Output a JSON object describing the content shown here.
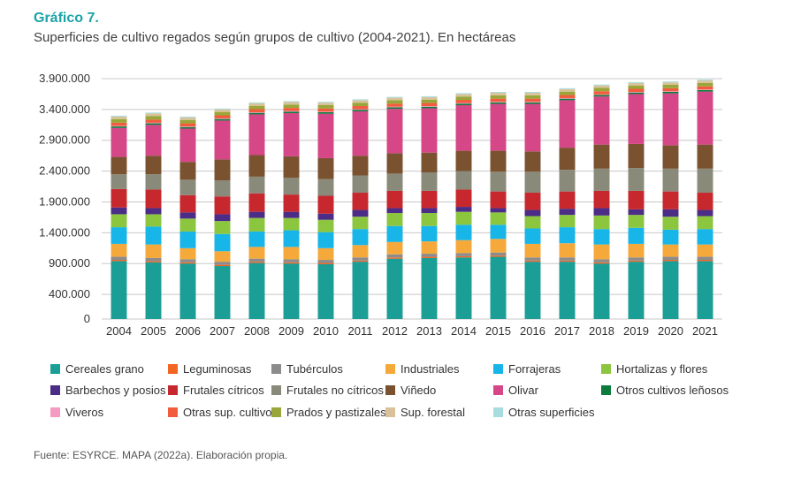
{
  "header": {
    "title": "Gráfico 7.",
    "subtitle": "Superficies de cultivo regados según grupos de cultivo (2004-2021). En hectáreas"
  },
  "source": "Fuente: ESYRCE. MAPA (2022a). Elaboración propia.",
  "chart_data": {
    "type": "bar",
    "stacked": true,
    "title": "Superficies de cultivo regados según grupos de cultivo (2004-2021). En hectáreas",
    "xlabel": "",
    "ylabel": "",
    "ylim": [
      0,
      3900000
    ],
    "yticks": [
      0,
      400000,
      900000,
      1400000,
      1900000,
      2400000,
      2900000,
      3400000,
      3900000
    ],
    "ytick_labels": [
      "0",
      "400.000",
      "900.000",
      "1.400.000",
      "1.900.000",
      "2.400.000",
      "2.900.000",
      "3.400.000",
      "3.900.000"
    ],
    "grid": true,
    "legend_position": "bottom",
    "categories": [
      "2004",
      "2005",
      "2006",
      "2007",
      "2008",
      "2009",
      "2010",
      "2011",
      "2012",
      "2013",
      "2014",
      "2015",
      "2016",
      "2017",
      "2018",
      "2019",
      "2020",
      "2021"
    ],
    "series": [
      {
        "name": "Cereales grano",
        "color": "#1a9e96",
        "values": [
          940000,
          920000,
          900000,
          860000,
          910000,
          900000,
          890000,
          930000,
          980000,
          990000,
          1000000,
          1010000,
          930000,
          930000,
          900000,
          930000,
          940000,
          940000
        ]
      },
      {
        "name": "Leguminosas",
        "color": "#f26522",
        "values": [
          20000,
          20000,
          20000,
          20000,
          20000,
          20000,
          20000,
          20000,
          20000,
          20000,
          20000,
          20000,
          20000,
          20000,
          20000,
          20000,
          20000,
          20000
        ]
      },
      {
        "name": "Tubérculos",
        "color": "#8c8c8c",
        "values": [
          50000,
          50000,
          50000,
          50000,
          50000,
          50000,
          50000,
          50000,
          50000,
          50000,
          50000,
          50000,
          50000,
          50000,
          50000,
          50000,
          50000,
          50000
        ]
      },
      {
        "name": "Industriales",
        "color": "#f6a93b",
        "values": [
          210000,
          220000,
          180000,
          170000,
          190000,
          200000,
          190000,
          200000,
          200000,
          200000,
          210000,
          220000,
          220000,
          230000,
          240000,
          220000,
          200000,
          200000
        ]
      },
      {
        "name": "Forrajeras",
        "color": "#17b5e8",
        "values": [
          270000,
          290000,
          270000,
          280000,
          250000,
          270000,
          260000,
          260000,
          260000,
          250000,
          250000,
          230000,
          250000,
          260000,
          250000,
          260000,
          240000,
          250000
        ]
      },
      {
        "name": "Hortalizas y flores",
        "color": "#8cc63f",
        "values": [
          210000,
          200000,
          210000,
          210000,
          220000,
          200000,
          200000,
          200000,
          210000,
          210000,
          210000,
          200000,
          200000,
          200000,
          220000,
          210000,
          210000,
          210000
        ]
      },
      {
        "name": "Barbechos y posios",
        "color": "#4b2c86",
        "values": [
          110000,
          100000,
          100000,
          110000,
          100000,
          100000,
          100000,
          110000,
          80000,
          80000,
          80000,
          70000,
          100000,
          100000,
          120000,
          90000,
          120000,
          100000
        ]
      },
      {
        "name": "Frutales cítricos",
        "color": "#c7282e",
        "values": [
          300000,
          300000,
          280000,
          290000,
          300000,
          280000,
          290000,
          280000,
          280000,
          280000,
          280000,
          270000,
          280000,
          280000,
          280000,
          300000,
          290000,
          280000
        ]
      },
      {
        "name": "Frutales no cítricos",
        "color": "#8a8a7a",
        "values": [
          240000,
          250000,
          250000,
          260000,
          270000,
          270000,
          270000,
          280000,
          280000,
          300000,
          300000,
          320000,
          340000,
          350000,
          360000,
          370000,
          370000,
          390000
        ]
      },
      {
        "name": "Viñedo",
        "color": "#7a5230",
        "values": [
          280000,
          300000,
          290000,
          340000,
          350000,
          350000,
          340000,
          320000,
          330000,
          320000,
          330000,
          340000,
          330000,
          360000,
          390000,
          390000,
          380000,
          390000
        ]
      },
      {
        "name": "Olivar",
        "color": "#d64788",
        "values": [
          470000,
          500000,
          540000,
          630000,
          660000,
          700000,
          720000,
          720000,
          720000,
          720000,
          740000,
          760000,
          770000,
          770000,
          780000,
          810000,
          840000,
          860000
        ]
      },
      {
        "name": "Otros cultivos leñosos",
        "color": "#0e7a3e",
        "values": [
          25000,
          25000,
          25000,
          25000,
          25000,
          25000,
          25000,
          25000,
          25000,
          25000,
          25000,
          25000,
          25000,
          25000,
          25000,
          25000,
          25000,
          25000
        ]
      },
      {
        "name": "Viveros",
        "color": "#f59ac0",
        "values": [
          10000,
          10000,
          10000,
          10000,
          10000,
          10000,
          10000,
          10000,
          10000,
          10000,
          10000,
          10000,
          10000,
          10000,
          10000,
          10000,
          10000,
          10000
        ]
      },
      {
        "name": "Otras sup. cultivo",
        "color": "#f25c3c",
        "values": [
          50000,
          50000,
          50000,
          50000,
          50000,
          50000,
          50000,
          50000,
          50000,
          50000,
          50000,
          50000,
          50000,
          50000,
          50000,
          50000,
          50000,
          50000
        ]
      },
      {
        "name": "Prados y pastizales",
        "color": "#9aa63a",
        "values": [
          60000,
          60000,
          55000,
          55000,
          55000,
          55000,
          55000,
          55000,
          55000,
          55000,
          55000,
          55000,
          55000,
          55000,
          55000,
          55000,
          55000,
          55000
        ]
      },
      {
        "name": "Sup. forestal",
        "color": "#d9c29a",
        "values": [
          40000,
          40000,
          40000,
          40000,
          40000,
          40000,
          40000,
          40000,
          40000,
          40000,
          40000,
          40000,
          40000,
          40000,
          40000,
          40000,
          40000,
          40000
        ]
      },
      {
        "name": "Otras superficies",
        "color": "#a8dde0",
        "values": [
          15000,
          15000,
          15000,
          15000,
          15000,
          15000,
          15000,
          15000,
          15000,
          15000,
          15000,
          15000,
          15000,
          15000,
          15000,
          15000,
          15000,
          15000
        ]
      }
    ]
  }
}
